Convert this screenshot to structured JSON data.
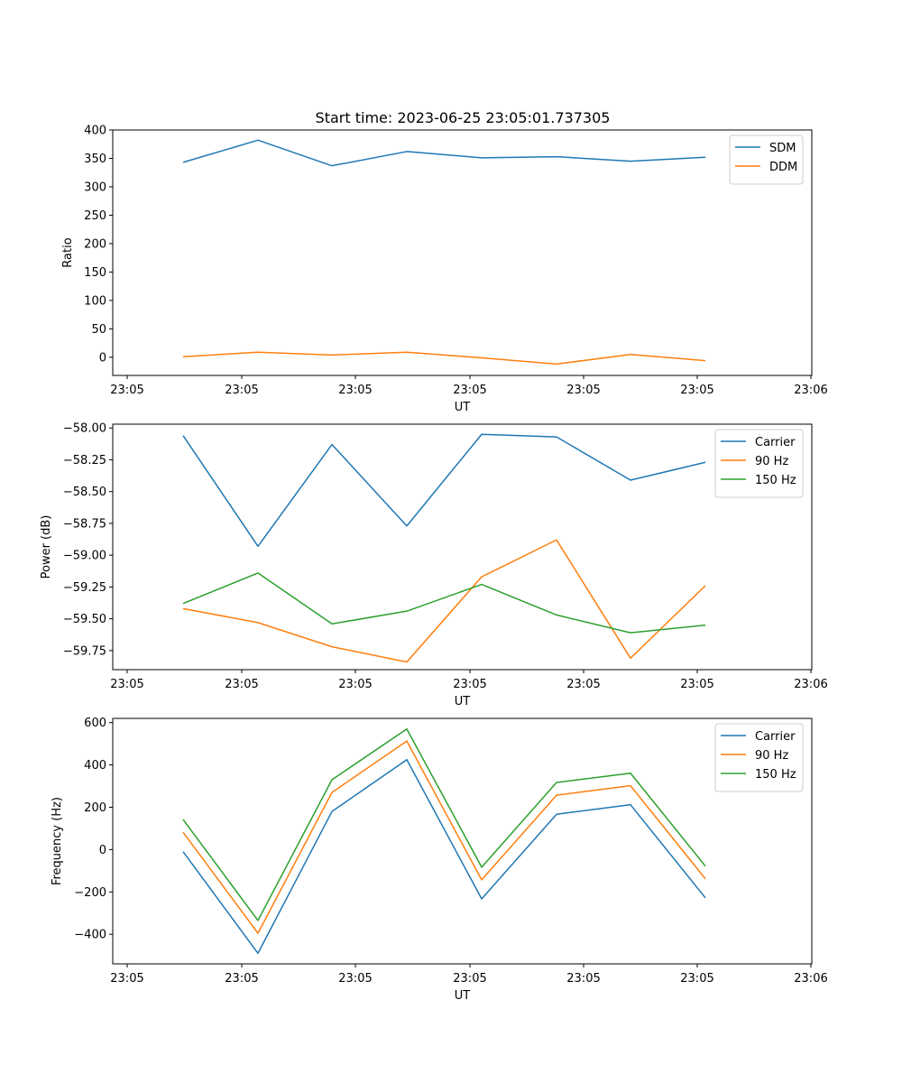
{
  "title": "Start time: 2023-06-25 23:05:01.737305",
  "x_tick_labels": [
    "23:05",
    "23:05",
    "23:05",
    "23:05",
    "23:05",
    "23:05",
    "23:06"
  ],
  "chart_data": [
    {
      "type": "line",
      "xlabel": "UT",
      "ylabel": "Ratio",
      "ylim": [
        -32,
        400
      ],
      "yticks": [
        0,
        50,
        100,
        150,
        200,
        250,
        300,
        350,
        400
      ],
      "ytick_labels": [
        "0",
        "50",
        "100",
        "150",
        "200",
        "250",
        "300",
        "350",
        "400"
      ],
      "legend": "top-right",
      "series": [
        {
          "name": "SDM",
          "color": "#1f77b4",
          "values": [
            343,
            382,
            337,
            362,
            351,
            353,
            345,
            352
          ]
        },
        {
          "name": "DDM",
          "color": "#ff7f0e",
          "values": [
            1,
            9,
            4,
            9,
            -1,
            -12,
            5,
            -6
          ]
        }
      ]
    },
    {
      "type": "line",
      "xlabel": "UT",
      "ylabel": "Power (dB)",
      "ylim": [
        -59.9,
        -57.97
      ],
      "yticks": [
        -58.0,
        -58.25,
        -58.5,
        -58.75,
        -59.0,
        -59.25,
        -59.5,
        -59.75
      ],
      "ytick_labels": [
        "−58.00",
        "−58.25",
        "−58.50",
        "−58.75",
        "−59.00",
        "−59.25",
        "−59.50",
        "−59.75"
      ],
      "legend": "top-right",
      "series": [
        {
          "name": "Carrier",
          "color": "#1f77b4",
          "values": [
            -58.06,
            -58.93,
            -58.13,
            -58.77,
            -58.05,
            -58.07,
            -58.41,
            -58.27
          ]
        },
        {
          "name": "90 Hz",
          "color": "#ff7f0e",
          "values": [
            -59.42,
            -59.53,
            -59.72,
            -59.84,
            -59.17,
            -58.88,
            -59.81,
            -59.24
          ]
        },
        {
          "name": "150 Hz",
          "color": "#2ca02c",
          "values": [
            -59.38,
            -59.14,
            -59.54,
            -59.44,
            -59.23,
            -59.47,
            -59.61,
            -59.55
          ]
        }
      ]
    },
    {
      "type": "line",
      "xlabel": "UT",
      "ylabel": "Frequency (Hz)",
      "ylim": [
        -540,
        620
      ],
      "yticks": [
        -400,
        -200,
        0,
        200,
        400,
        600
      ],
      "ytick_labels": [
        "−400",
        "−200",
        "0",
        "200",
        "400",
        "600"
      ],
      "legend": "top-right",
      "series": [
        {
          "name": "Carrier",
          "color": "#1f77b4",
          "values": [
            -10,
            -490,
            180,
            425,
            -233,
            167,
            212,
            -228
          ]
        },
        {
          "name": "90 Hz",
          "color": "#ff7f0e",
          "values": [
            82,
            -395,
            270,
            513,
            -143,
            257,
            302,
            -138
          ]
        },
        {
          "name": "150 Hz",
          "color": "#2ca02c",
          "values": [
            142,
            -335,
            330,
            570,
            -83,
            317,
            361,
            -78
          ]
        }
      ]
    }
  ]
}
